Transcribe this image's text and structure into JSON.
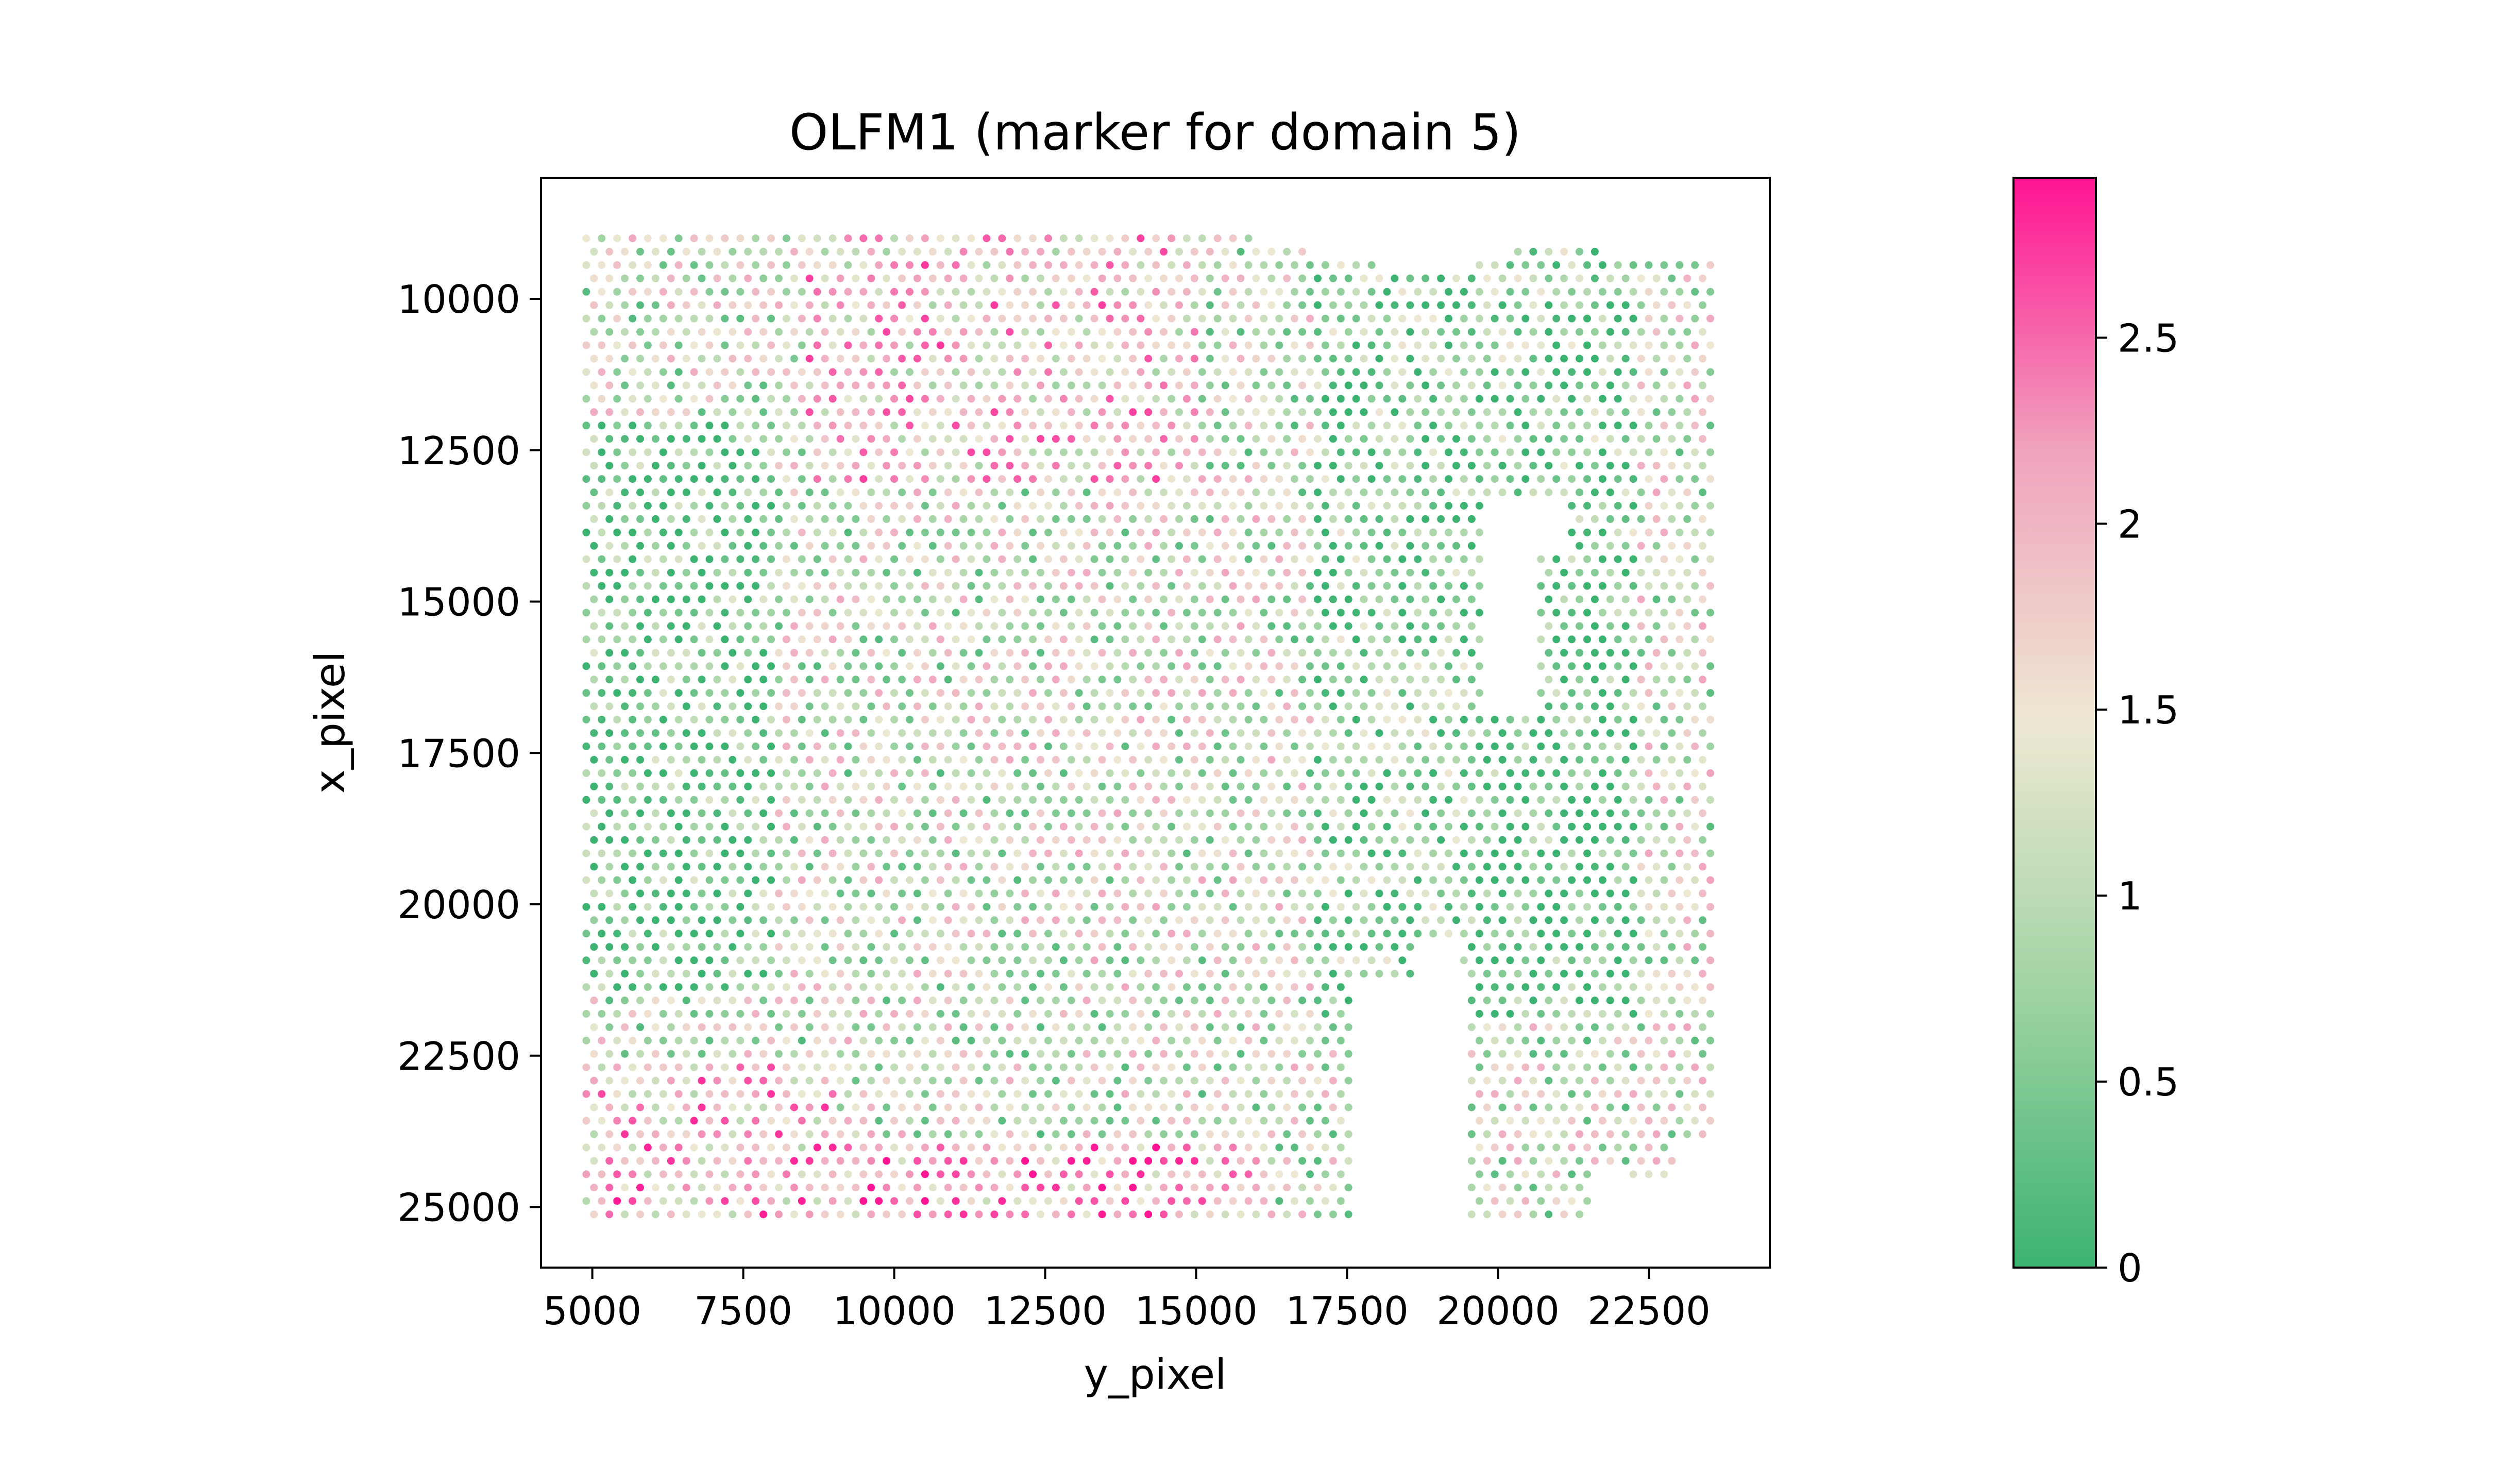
{
  "chart_data": {
    "type": "scatter",
    "title": "OLFM1 (marker for domain 5)",
    "xlabel": "y_pixel",
    "ylabel": "x_pixel",
    "xlim": [
      4150,
      24500
    ],
    "ylim": [
      26000,
      8000
    ],
    "y_inverted": true,
    "grid": false,
    "x_ticks": [
      5000,
      7500,
      10000,
      12500,
      15000,
      17500,
      20000,
      22500
    ],
    "x_tick_labels": [
      "5000",
      "7500",
      "10000",
      "12500",
      "15000",
      "17500",
      "20000",
      "22500"
    ],
    "y_ticks": [
      10000,
      12500,
      15000,
      17500,
      20000,
      22500,
      25000
    ],
    "y_tick_labels": [
      "10000",
      "12500",
      "15000",
      "17500",
      "20000",
      "22500",
      "25000"
    ],
    "color_range": [
      0,
      2.93
    ],
    "colormap": [
      "#3cb371",
      "#9fd3a3",
      "#eee8d2",
      "#f0a3bd",
      "#ff1493"
    ],
    "colorbar": {
      "ticks": [
        0,
        0.5,
        1,
        1.5,
        2,
        2.5
      ],
      "tick_labels": [
        "0",
        "0.5",
        "1",
        "1.5",
        "2",
        "2.5"
      ]
    },
    "spots": {
      "grid": "hexagonal",
      "x_range": [
        4900,
        23600
      ],
      "y_range": [
        9000,
        25200
      ],
      "spacing": 255,
      "excluded_regions": [
        "top-right corner above ~9500 for y_pixel > 16000",
        "hole near y_pixel 20000, x_pixel 13500-17000",
        "notch below x_pixel 21000 between y_pixel 17600 and 19800",
        "gap below x_pixel 23000 right of y_pixel 22000"
      ],
      "value_trend": "low (green) on left edge 5000-8000 and right side above y_pixel 17000; high (pink) along bottom rows and upper-middle region"
    }
  }
}
